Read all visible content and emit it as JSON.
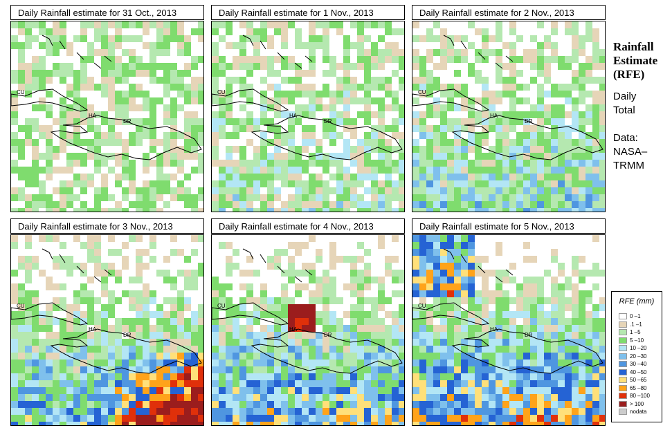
{
  "panels": [
    {
      "title": "Daily Rainfall estimate for  31 Oct., 2013",
      "intensity": 0
    },
    {
      "title": "Daily Rainfall estimate for  1 Nov., 2013",
      "intensity": 1
    },
    {
      "title": "Daily Rainfall estimate for  2 Nov., 2013",
      "intensity": 2
    },
    {
      "title": "Daily Rainfall estimate for  3 Nov., 2013",
      "intensity": 3
    },
    {
      "title": "Daily Rainfall estimate for  4 Nov., 2013",
      "intensity": 4
    },
    {
      "title": "Daily Rainfall estimate for  5 Nov., 2013",
      "intensity": 5
    }
  ],
  "map_labels": {
    "cuba": "CU",
    "haiti": "HA",
    "dr": "DR"
  },
  "sidebar": {
    "title_line1": "Rainfall",
    "title_line2": "Estimate",
    "title_line3": "(RFE)",
    "daily": "Daily",
    "total": "Total",
    "data": "Data:",
    "nasa": "NASA–",
    "trmm": "TRMM"
  },
  "legend": {
    "title": "RFE (mm)",
    "items": [
      {
        "label": "0 –1",
        "color": "#ffffff"
      },
      {
        "label": ".1 –1",
        "color": "#e6d5b8"
      },
      {
        "label": "1 –5",
        "color": "#b5e8b0"
      },
      {
        "label": "5 –10",
        "color": "#7fdc6e"
      },
      {
        "label": "10 –20",
        "color": "#b3e6f5"
      },
      {
        "label": "20 –30",
        "color": "#7fc0ec"
      },
      {
        "label": "30 –40",
        "color": "#4f96e0"
      },
      {
        "label": "40 –50",
        "color": "#2563d4"
      },
      {
        "label": "50 –65",
        "color": "#ffe07a"
      },
      {
        "label": "65 –80",
        "color": "#ffa31a"
      },
      {
        "label": "80 –100",
        "color": "#e0300a"
      },
      {
        "label": "> 100",
        "color": "#9b1d1d"
      },
      {
        "label": "nodata",
        "color": "#cccccc"
      }
    ]
  }
}
